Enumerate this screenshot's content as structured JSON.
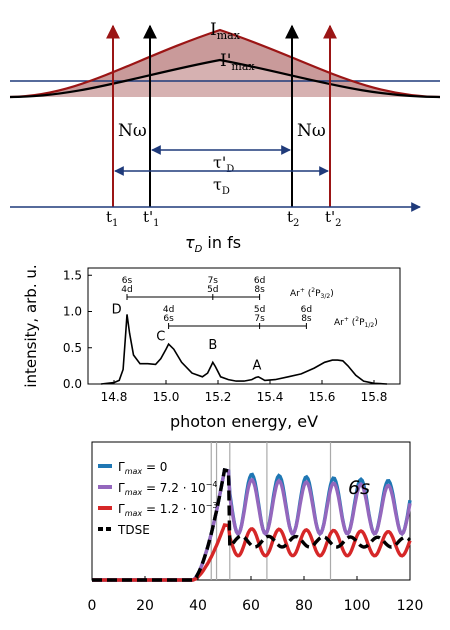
{
  "colors": {
    "navy": "#1f3a7a",
    "dark_red": "#9b1515",
    "pulse_fill": "#c99a9a",
    "black": "#000000",
    "blue": "#1f77b4",
    "purple": "#9467bd",
    "red": "#d62728"
  },
  "diagram": {
    "labels": {
      "imax": "I",
      "imax_sub": "max",
      "imax_prime": "I'",
      "imax_prime_sub": "max",
      "n_omega_left": "Nω",
      "n_omega_right": "Nω",
      "tau_d_prime": "τ'",
      "tau_d_prime_sub": "D",
      "tau_d": "τ",
      "tau_d_sub": "D",
      "t1": "t",
      "t1_sub": "1",
      "t1_prime": "t'",
      "t1_prime_sub": "1",
      "t2": "t",
      "t2_sub": "2",
      "t2_prime": "t'",
      "t2_prime_sub": "2",
      "axis_label": "τ",
      "axis_label_sub": "D",
      "axis_label_rest": " in fs"
    }
  },
  "chart_data": [
    {
      "type": "line",
      "title": "",
      "xlabel": "photon energy, eV",
      "ylabel": "intensity, arb. u.",
      "xlim": [
        14.7,
        15.9
      ],
      "ylim": [
        0.0,
        1.6
      ],
      "xticks": [
        14.8,
        15.0,
        15.2,
        15.4,
        15.6,
        15.8
      ],
      "yticks": [
        0.0,
        0.5,
        1.0,
        1.5
      ],
      "xtick_labels": [
        "14.8",
        "15.0",
        "15.2",
        "15.4",
        "15.6",
        "15.8"
      ],
      "ytick_labels": [
        "0.0",
        "0.5",
        "1.0",
        "1.5"
      ],
      "series": [
        {
          "x": [
            14.75,
            14.8,
            14.82,
            14.835,
            14.845,
            14.85,
            14.86,
            14.875,
            14.9,
            14.93,
            14.96,
            14.98,
            15.0,
            15.01,
            15.03,
            15.06,
            15.1,
            15.14,
            15.16,
            15.175,
            15.18,
            15.19,
            15.21,
            15.24,
            15.27,
            15.3,
            15.33,
            15.345,
            15.355,
            15.365,
            15.38,
            15.42,
            15.47,
            15.52,
            15.57,
            15.61,
            15.64,
            15.66,
            15.68,
            15.7,
            15.73,
            15.76,
            15.8,
            15.85
          ],
          "y": [
            0.0,
            0.02,
            0.05,
            0.2,
            0.7,
            0.96,
            0.7,
            0.4,
            0.28,
            0.28,
            0.27,
            0.35,
            0.48,
            0.55,
            0.48,
            0.3,
            0.15,
            0.1,
            0.15,
            0.26,
            0.3,
            0.24,
            0.1,
            0.06,
            0.04,
            0.04,
            0.06,
            0.09,
            0.1,
            0.08,
            0.05,
            0.06,
            0.1,
            0.14,
            0.22,
            0.3,
            0.33,
            0.33,
            0.32,
            0.25,
            0.12,
            0.04,
            0.01,
            0.0
          ]
        }
      ],
      "annotations": [
        {
          "text": "D",
          "x": 14.81,
          "y": 0.97
        },
        {
          "text": "C",
          "x": 14.98,
          "y": 0.6
        },
        {
          "text": "B",
          "x": 15.18,
          "y": 0.48
        },
        {
          "text": "A",
          "x": 15.35,
          "y": 0.2
        }
      ],
      "series_labels": {
        "ar32": "Ar",
        "ar32_sup": "+",
        "ar32_rest": " (",
        "ar32_sup2": "2",
        "ar32_rest2": "P",
        "ar32_sub": "3/2",
        "ar32_close": ")",
        "ar12": "Ar",
        "ar12_sup": "+",
        "ar12_rest": " (",
        "ar12_sup2": "2",
        "ar12_rest2": "P",
        "ar12_sub": "1/2",
        "ar12_close": ")"
      },
      "level_marks_row1": [
        {
          "x": 14.85,
          "top": "6s",
          "bottom": "4d"
        },
        {
          "x": 15.18,
          "top": "7s",
          "bottom": "5d"
        },
        {
          "x": 15.36,
          "top": "6d",
          "bottom": "8s"
        }
      ],
      "level_marks_row2": [
        {
          "x": 15.01,
          "top": "4d",
          "bottom": "6s"
        },
        {
          "x": 15.36,
          "top": "5d",
          "bottom": "7s"
        },
        {
          "x": 15.54,
          "top": "6d",
          "bottom": "8s"
        }
      ]
    },
    {
      "type": "line",
      "title": "",
      "xlabel": "",
      "ylabel": "",
      "xlim": [
        0,
        120
      ],
      "xticks": [
        0,
        20,
        40,
        60,
        80,
        100,
        120
      ],
      "xtick_labels": [
        "0",
        "20",
        "40",
        "60",
        "80",
        "100",
        "120"
      ],
      "panel_label": "6s",
      "vertical_lines": [
        45,
        47,
        52,
        66,
        90
      ],
      "legend": {
        "placement": "upper-left",
        "entries": [
          {
            "prefix": "Γ",
            "sub": "max",
            "text": " = 0",
            "color": "#1f77b4"
          },
          {
            "prefix": "Γ",
            "sub": "max",
            "text": " = 7.2 · 10",
            "sup": "−4",
            "color": "#9467bd"
          },
          {
            "prefix": "Γ",
            "sub": "max",
            "text": " = 1.2 · 10",
            "sup": "−3",
            "color": "#d62728"
          },
          {
            "prefix": "",
            "sub": "",
            "text": "TDSE",
            "color": "#000000"
          }
        ]
      },
      "series": [
        {
          "name": "Γmax = 0",
          "envelope_peak": 1.0,
          "oscillation_amplitude": 0.55
        },
        {
          "name": "Γmax = 7.2 · 10−4",
          "envelope_peak": 1.0,
          "oscillation_amplitude": 0.5
        },
        {
          "name": "Γmax = 1.2 · 10−3",
          "envelope_peak": 0.5,
          "oscillation_amplitude": 0.25
        },
        {
          "name": "TDSE",
          "envelope_peak": 1.0,
          "oscillation_amplitude": 0.2
        }
      ]
    }
  ]
}
